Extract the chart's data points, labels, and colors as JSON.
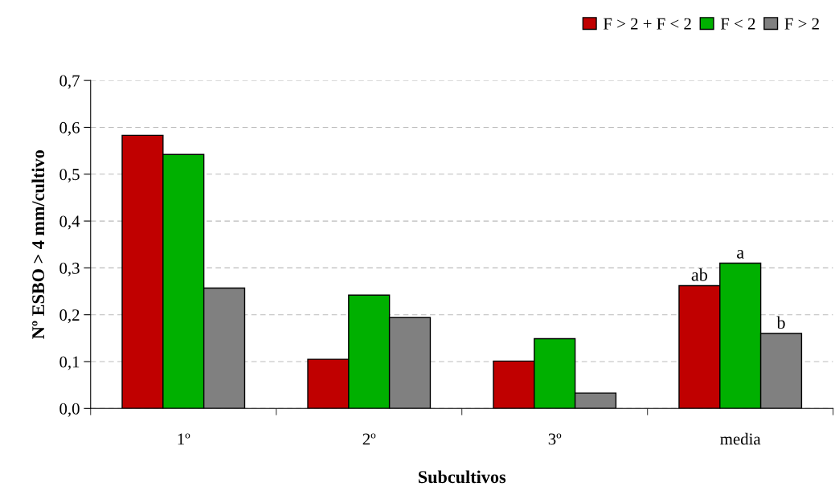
{
  "chart_data": {
    "type": "bar",
    "xlabel": "Subcultivos",
    "ylabel": "Nº ESBO > 4 mm/cultivo",
    "categories": [
      "1º",
      "2º",
      "3º",
      "media"
    ],
    "series": [
      {
        "name": "F > 2 + F < 2",
        "color": "#c00000",
        "values": [
          0.583,
          0.105,
          0.101,
          0.262
        ],
        "value_labels": [
          null,
          null,
          null,
          "ab"
        ]
      },
      {
        "name": "F < 2",
        "color": "#00b000",
        "values": [
          0.542,
          0.242,
          0.149,
          0.31
        ],
        "value_labels": [
          null,
          null,
          null,
          "a"
        ]
      },
      {
        "name": "F > 2",
        "color": "#808080",
        "values": [
          0.257,
          0.194,
          0.033,
          0.16
        ],
        "value_labels": [
          null,
          null,
          null,
          "b"
        ]
      }
    ],
    "ylim": [
      0,
      0.7
    ],
    "yticks": [
      {
        "value": 0,
        "label": "0,0"
      },
      {
        "value": 0.1,
        "label": "0,1"
      },
      {
        "value": 0.2,
        "label": "0,2"
      },
      {
        "value": 0.3,
        "label": "0,3"
      },
      {
        "value": 0.4,
        "label": "0,4"
      },
      {
        "value": 0.5,
        "label": "0,5"
      },
      {
        "value": 0.6,
        "label": "0,6"
      },
      {
        "value": 0.7,
        "label": "0,7"
      }
    ],
    "grid": "y",
    "legend": "top right"
  }
}
